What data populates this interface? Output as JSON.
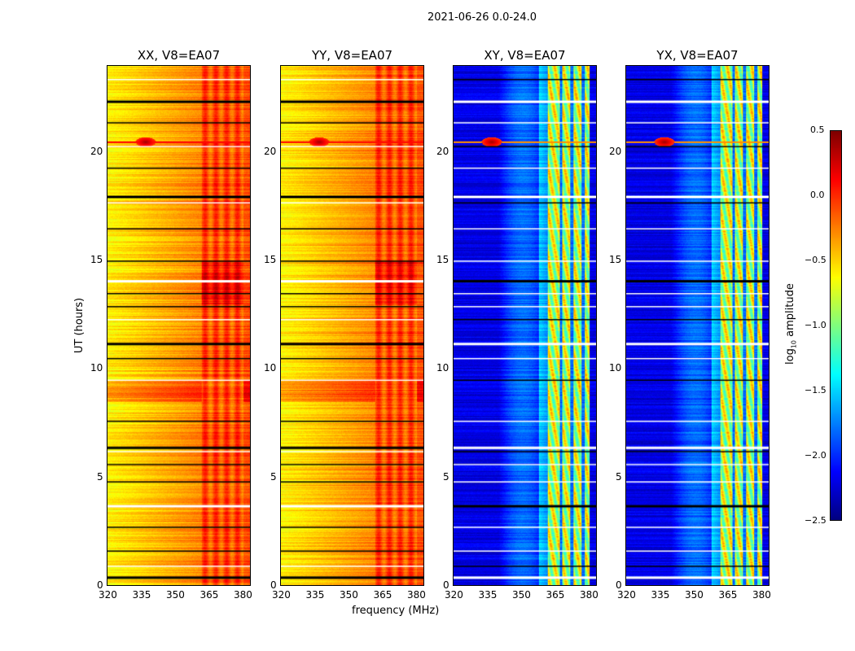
{
  "chart_data": {
    "type": "heatmap",
    "suptitle": "2021-06-26 0.0-24.0",
    "xlabel": "frequency (MHz)",
    "ylabel": "UT (hours)",
    "xlim": [
      320,
      384
    ],
    "ylim": [
      0,
      24
    ],
    "xticks": [
      "320",
      "335",
      "350",
      "365",
      "380"
    ],
    "yticks": [
      "0",
      "5",
      "10",
      "15",
      "20"
    ],
    "panels": [
      {
        "title": "XX, V8=EA07",
        "polarization": "XX",
        "base_level": -0.6,
        "band_level": -0.1
      },
      {
        "title": "YY, V8=EA07",
        "polarization": "YY",
        "base_level": -0.6,
        "band_level": -0.1
      },
      {
        "title": "XY, V8=EA07",
        "polarization": "XY",
        "base_level": -2.2,
        "band_level": -0.8
      },
      {
        "title": "YX, V8=EA07",
        "polarization": "YX",
        "base_level": -2.2,
        "band_level": -0.8
      }
    ],
    "rfi_band_mhz": [
      362,
      381
    ],
    "rfi_spike": {
      "ut_hours": 20.5,
      "freq_mhz": 337
    },
    "flagged_rows_ut": [
      0.4,
      0.9,
      1.6,
      2.7,
      3.7,
      4.8,
      5.6,
      6.2,
      6.4,
      7.6,
      9.5,
      10.5,
      11.2,
      12.3,
      12.9,
      13.5,
      14.1,
      15.0,
      16.5,
      17.7,
      18.0,
      19.3,
      20.3,
      21.4,
      22.4,
      23.4
    ],
    "colorbar": {
      "label": "log10 amplitude",
      "label_main": "log",
      "label_sub": "10",
      "label_rest": " amplitude",
      "range": [
        -2.5,
        0.5
      ],
      "ticks": [
        "0.5",
        "0.0",
        "−0.5",
        "−1.0",
        "−1.5",
        "−2.0",
        "−2.5"
      ],
      "colormap": "jet"
    }
  }
}
